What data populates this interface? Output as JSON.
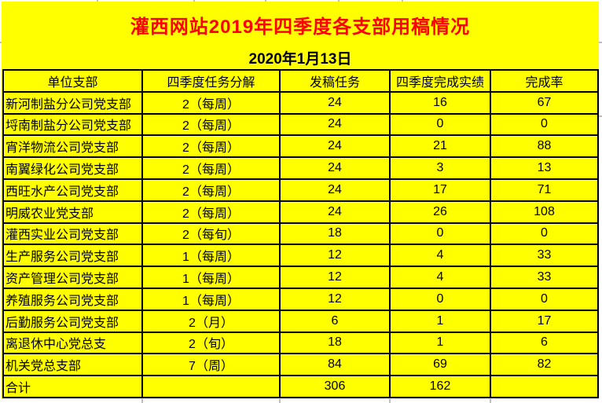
{
  "title": "灌西网站2019年四季度各支部用稿情况",
  "date": "2020年1月13日",
  "table": {
    "headers": [
      "单位支部",
      "四季度任务分解",
      "发稿任务",
      "四季度完成实绩",
      "完成率"
    ],
    "rows": [
      [
        "新河制盐分公司党支部",
        "2（每周）",
        "24",
        "16",
        "67"
      ],
      [
        "埒南制盐分公司党支部",
        "2（每周）",
        "24",
        "0",
        "0"
      ],
      [
        "宵洋物流公司党支部",
        "2（每周）",
        "24",
        "21",
        "88"
      ],
      [
        "南翼绿化公司党支部",
        "2（每周）",
        "24",
        "3",
        "13"
      ],
      [
        "西旺水产公司党支部",
        "2（每周）",
        "24",
        "17",
        "71"
      ],
      [
        "明威农业党支部",
        "2（每周）",
        "24",
        "26",
        "108"
      ],
      [
        "灌西实业公司党支部",
        "2（每旬）",
        "18",
        "0",
        "0"
      ],
      [
        "生产服务公司党支部",
        "1（每周）",
        "12",
        "4",
        "33"
      ],
      [
        "资产管理公司党支部",
        "1（每周）",
        "12",
        "4",
        "33"
      ],
      [
        "养殖服务公司党支部",
        "1（每周）",
        "12",
        "0",
        "0"
      ],
      [
        "后勤服务公司党支部",
        "2（月）",
        "6",
        "1",
        "17"
      ],
      [
        "离退休中心党总支",
        "2（旬）",
        "18",
        "1",
        "6"
      ],
      [
        "机关党总支部",
        "7（周）",
        "84",
        "69",
        "82"
      ],
      [
        "合计",
        "",
        "306",
        "162",
        ""
      ]
    ],
    "total_row_label": "合计"
  },
  "colors": {
    "sheet_background": "#FFFF00",
    "title_text": "#FF0000",
    "body_text": "#000000",
    "table_border": "#000000",
    "gridline": "#BFBFBF",
    "page_background": "#FFFFFF"
  }
}
